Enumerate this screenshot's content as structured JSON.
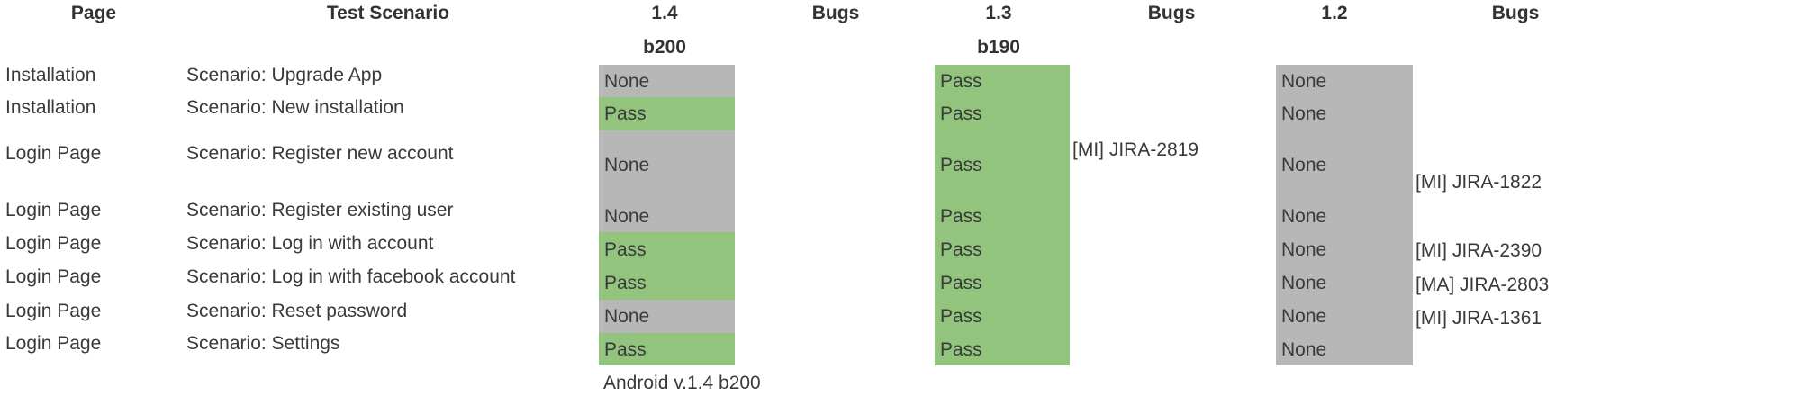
{
  "header": {
    "page": "Page",
    "scenario": "Test Scenario",
    "v14": "1.4",
    "bugs1": "Bugs",
    "v13": "1.3",
    "bugs2": "Bugs",
    "v12": "1.2",
    "bugs3": "Bugs",
    "build14": "b200",
    "build13": "b190"
  },
  "rows": [
    {
      "page": "Installation",
      "scenario": "Scenario: Upgrade App",
      "r14": "None",
      "r13": "Pass",
      "r12": "None"
    },
    {
      "page": "Installation",
      "scenario": "Scenario: New installation",
      "r14": "Pass",
      "r13": "Pass",
      "r12": "None"
    },
    {
      "page": "Login Page",
      "scenario": "Scenario: Register new account",
      "r14": "None",
      "r13": "Pass",
      "r12": "None"
    },
    {
      "page": "Login Page",
      "scenario": "Scenario: Register existing user",
      "r14": "None",
      "r13": "Pass",
      "r12": "None"
    },
    {
      "page": "Login Page",
      "scenario": "Scenario: Log in with account",
      "r14": "Pass",
      "r13": "Pass",
      "r12": "None"
    },
    {
      "page": "Login Page",
      "scenario": "Scenario: Log in with facebook account",
      "r14": "Pass",
      "r13": "Pass",
      "r12": "None"
    },
    {
      "page": "Login Page",
      "scenario": "Scenario: Reset password",
      "r14": "None",
      "r13": "Pass",
      "r12": "None"
    },
    {
      "page": "Login Page",
      "scenario": "Scenario: Settings",
      "r14": "Pass",
      "r13": "Pass",
      "r12": "None"
    }
  ],
  "bugs13": [
    "[MI] JIRA-2819"
  ],
  "bugs12": [
    "[MI] JIRA-1822",
    "[MI] JIRA-2390",
    "[MA] JIRA-2803",
    "[MI] JIRA-1361"
  ],
  "footer": "Android v.1.4 b200",
  "colors": {
    "pass": "#93c47d",
    "none": "#b7b7b7"
  }
}
